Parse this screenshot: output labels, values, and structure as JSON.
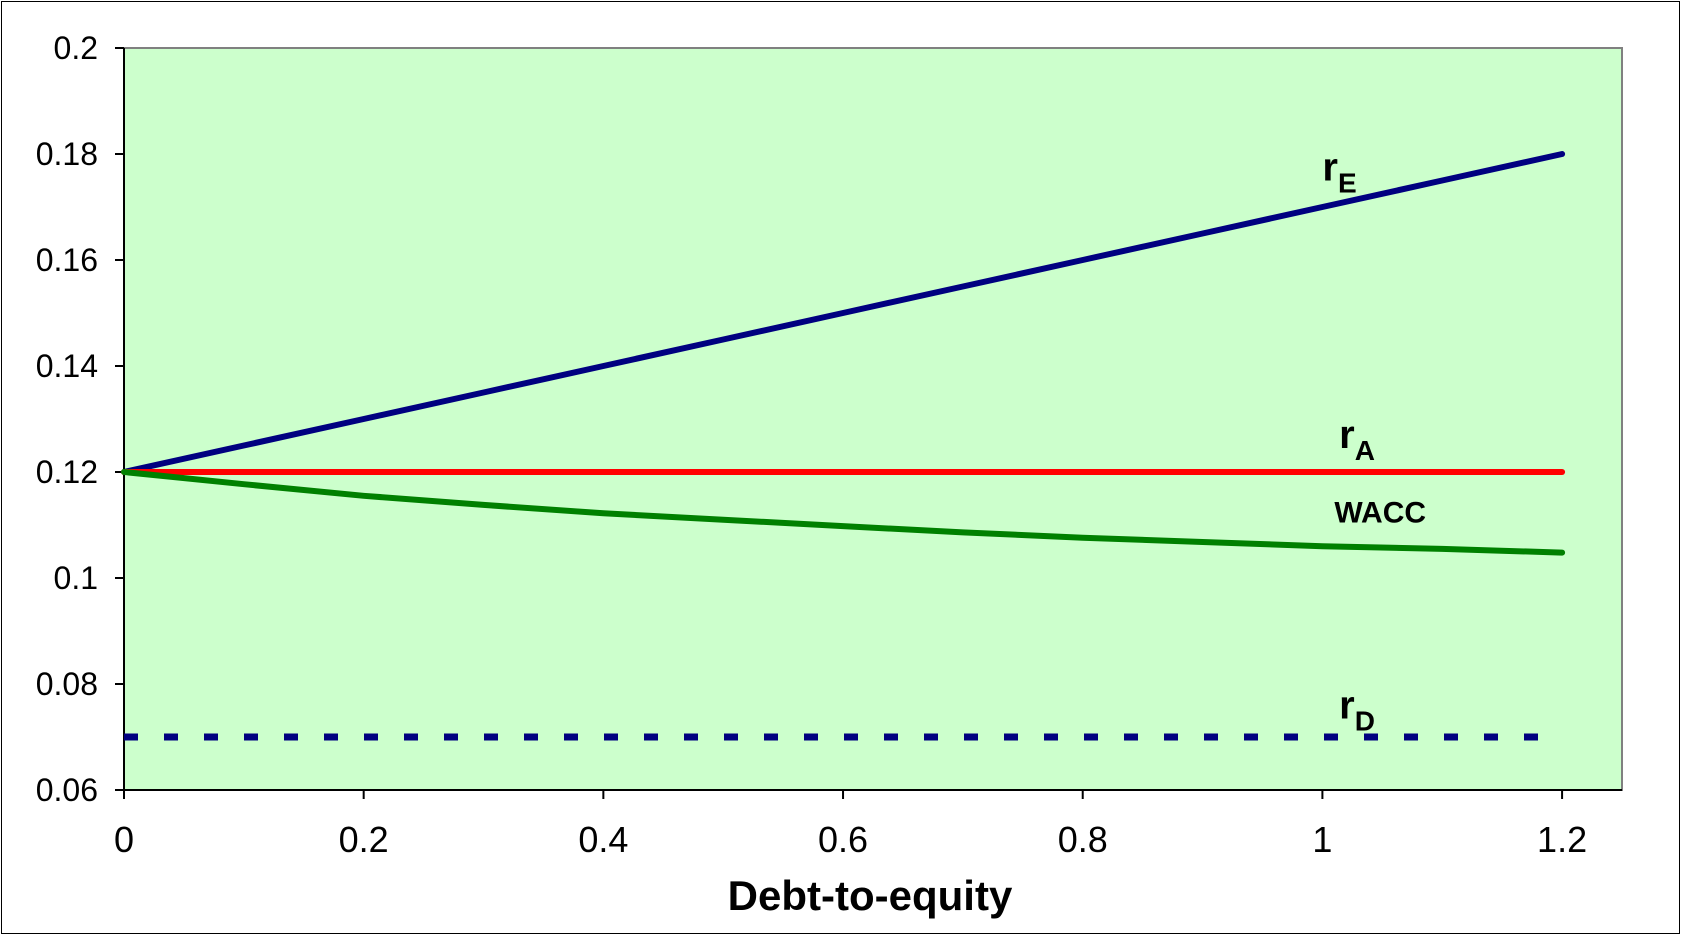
{
  "chart_data": {
    "type": "line",
    "title": "",
    "xlabel": "Debt-to-equity",
    "ylabel": "",
    "xlim": [
      0,
      1.25
    ],
    "ylim": [
      0.06,
      0.2
    ],
    "x_ticks": [
      "0",
      "0.2",
      "0.4",
      "0.6",
      "0.8",
      "1",
      "1.2"
    ],
    "y_ticks": [
      "0.06",
      "0.08",
      "0.1",
      "0.12",
      "0.14",
      "0.16",
      "0.18",
      "0.2"
    ],
    "plot_background": "#ccffcc",
    "grid": false,
    "legend": "none",
    "x": [
      0,
      0.1,
      0.2,
      0.3,
      0.4,
      0.5,
      0.6,
      0.7,
      0.8,
      0.9,
      1.0,
      1.1,
      1.2
    ],
    "series": [
      {
        "key": "rE",
        "label_main": "r",
        "label_sub": "E",
        "color": "#000080",
        "style": "solid",
        "values": [
          0.12,
          0.125,
          0.13,
          0.135,
          0.14,
          0.145,
          0.15,
          0.155,
          0.16,
          0.165,
          0.17,
          0.175,
          0.18
        ]
      },
      {
        "key": "rA",
        "label_main": "r",
        "label_sub": "A",
        "color": "#ff0000",
        "style": "solid",
        "values": [
          0.12,
          0.12,
          0.12,
          0.12,
          0.12,
          0.12,
          0.12,
          0.12,
          0.12,
          0.12,
          0.12,
          0.12,
          0.12
        ]
      },
      {
        "key": "wacc",
        "label_main": "WACC",
        "label_sub": "",
        "color": "#008000",
        "style": "solid",
        "values": [
          0.12,
          0.1177,
          0.1155,
          0.1138,
          0.1122,
          0.111,
          0.1098,
          0.1086,
          0.1076,
          0.1068,
          0.106,
          0.1055,
          0.1048
        ]
      },
      {
        "key": "rD",
        "label_main": "r",
        "label_sub": "D",
        "color": "#000080",
        "style": "dashed",
        "values": [
          0.07,
          0.07,
          0.07,
          0.07,
          0.07,
          0.07,
          0.07,
          0.07,
          0.07,
          0.07,
          0.07,
          0.07,
          0.07
        ]
      }
    ]
  }
}
